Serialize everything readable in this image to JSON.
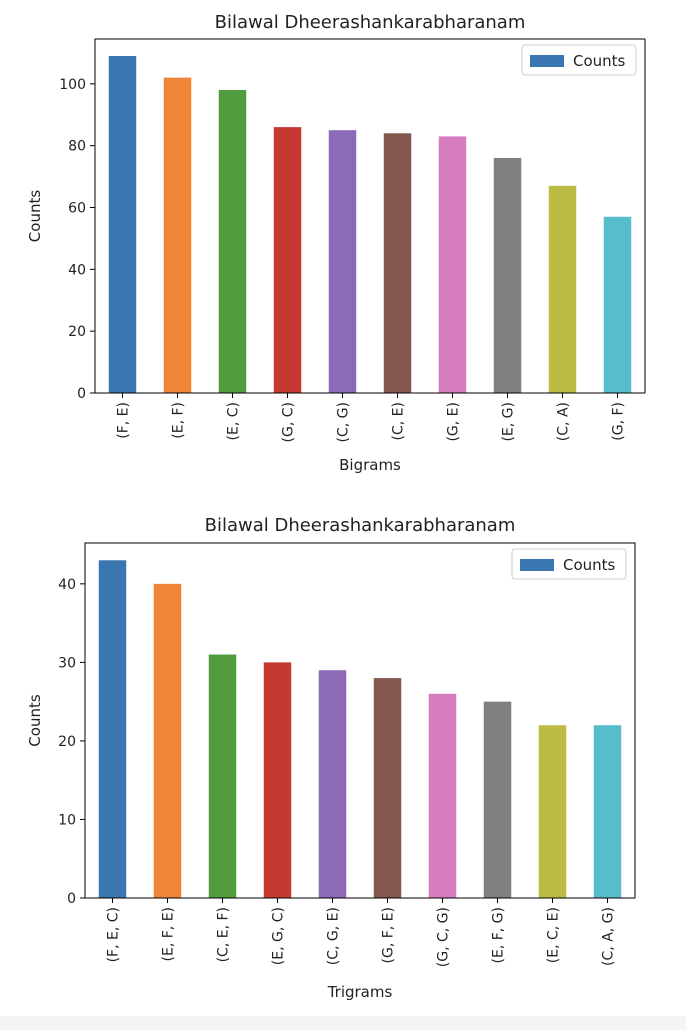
{
  "chart_data": [
    {
      "type": "bar",
      "title": "Bilawal Dheerashankarabharanam",
      "xlabel": "Bigrams",
      "ylabel": "Counts",
      "categories": [
        "(F, E)",
        "(E, F)",
        "(E, C)",
        "(G, C)",
        "(C, G)",
        "(C, E)",
        "(G, E)",
        "(E, G)",
        "(C, A)",
        "(G, F)"
      ],
      "series": [
        {
          "name": "Counts",
          "values": [
            109,
            102,
            98,
            86,
            85,
            84,
            83,
            76,
            67,
            57
          ]
        }
      ],
      "colors": [
        "#3a76af",
        "#ef8536",
        "#519d3e",
        "#c53932",
        "#8d6ab8",
        "#84584e",
        "#d57dbe",
        "#7f7f7f",
        "#bcbc45",
        "#57bccc"
      ],
      "yticks": [
        0,
        20,
        40,
        60,
        80,
        100
      ],
      "ylim": [
        0,
        114.5
      ],
      "grid": false,
      "legend_position": "top-right"
    },
    {
      "type": "bar",
      "title": "Bilawal Dheerashankarabharanam",
      "xlabel": "Trigrams",
      "ylabel": "Counts",
      "categories": [
        "(F, E, C)",
        "(E, F, E)",
        "(C, E, F)",
        "(E, G, C)",
        "(C, G, E)",
        "(G, F, E)",
        "(G, C, G)",
        "(E, F, G)",
        "(E, C, E)",
        "(C, A, G)"
      ],
      "series": [
        {
          "name": "Counts",
          "values": [
            43,
            40,
            31,
            30,
            29,
            28,
            26,
            25,
            22,
            22
          ]
        }
      ],
      "colors": [
        "#3a76af",
        "#ef8536",
        "#519d3e",
        "#c53932",
        "#8d6ab8",
        "#84584e",
        "#d57dbe",
        "#7f7f7f",
        "#bcbc45",
        "#57bccc"
      ],
      "yticks": [
        0,
        10,
        20,
        30,
        40
      ],
      "ylim": [
        0,
        45.2
      ],
      "grid": false,
      "legend_position": "top-right"
    }
  ]
}
